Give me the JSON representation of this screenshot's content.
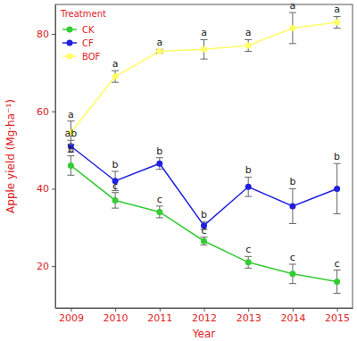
{
  "chart_data": {
    "type": "line",
    "xlabel": "Year",
    "ylabel": "Apple yield (Mg·ha⁻¹)",
    "legend_title": "Treatment",
    "legend": "upper left",
    "grid": false,
    "marker": "circle",
    "x": [
      2009,
      2010,
      2011,
      2012,
      2013,
      2014,
      2015
    ],
    "xlim": [
      2008.65,
      2015.35
    ],
    "xticks": [
      2009,
      2010,
      2011,
      2012,
      2013,
      2014,
      2015
    ],
    "ylim": [
      9.2,
      87.6
    ],
    "yticks": [
      20,
      40,
      60,
      80
    ],
    "series": [
      {
        "name": "CK",
        "color": "#33cc33",
        "values": [
          46,
          37,
          34,
          26.5,
          21,
          18,
          16
        ],
        "errors": [
          2.5,
          2,
          1.5,
          1,
          1.5,
          2.5,
          3
        ],
        "annotations": [
          "b",
          "c",
          "c",
          "c",
          "c",
          "c",
          "c"
        ]
      },
      {
        "name": "CF",
        "color": "#1f1fdd",
        "values": [
          51,
          42,
          46.5,
          30.5,
          40.5,
          35.5,
          40
        ],
        "errors": [
          1.5,
          2.5,
          1.5,
          1,
          2.5,
          4.5,
          6.5
        ],
        "annotations": [
          "ab",
          "b",
          "b",
          "b",
          "b",
          "b",
          "b"
        ]
      },
      {
        "name": "BOF",
        "color": "#ffff66",
        "values": [
          54.5,
          69,
          75.5,
          76,
          77,
          81.5,
          83
        ],
        "errors": [
          3,
          1.5,
          0.5,
          2.5,
          1.5,
          4,
          1.5
        ],
        "annotations": [
          "a",
          "a",
          "a",
          "a",
          "a",
          "a",
          "a"
        ]
      }
    ]
  }
}
